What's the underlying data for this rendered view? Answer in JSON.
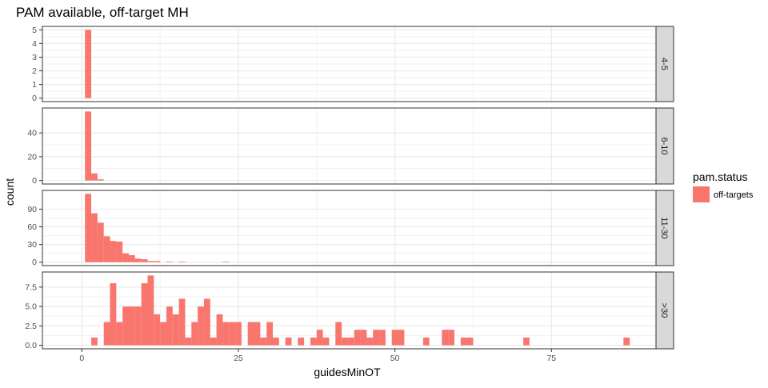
{
  "chart_data": {
    "type": "bar",
    "title": "PAM available, off-target MH",
    "xlabel": "guidesMinOT",
    "ylabel": "count",
    "xlim": [
      -6.3,
      91.7
    ],
    "x_ticks": [
      0,
      25,
      50,
      75
    ],
    "x_tick_labels": [
      "0",
      "25",
      "50",
      "75"
    ],
    "bin_width": 1,
    "grid": true,
    "legend": {
      "title": "pam.status",
      "position": "right",
      "entries": [
        {
          "label": "off-targets",
          "color": "#F8766D"
        }
      ]
    },
    "panels": [
      {
        "strip": "4-5",
        "ylim": [
          -0.25,
          5.25
        ],
        "y_ticks": [
          0,
          1,
          2,
          3,
          4,
          5
        ],
        "y_tick_labels": [
          "0",
          "1",
          "2",
          "3",
          "4",
          "5"
        ],
        "bins": [
          {
            "x": 1,
            "count": 5
          }
        ]
      },
      {
        "strip": "6-10",
        "ylim": [
          -2.9,
          60.9
        ],
        "y_ticks": [
          0,
          20,
          40
        ],
        "y_tick_labels": [
          "0",
          "20",
          "40"
        ],
        "bins": [
          {
            "x": 1,
            "count": 58
          },
          {
            "x": 2,
            "count": 6
          },
          {
            "x": 3,
            "count": 1
          }
        ]
      },
      {
        "strip": "11-30",
        "ylim": [
          -5.8,
          121.8
        ],
        "y_ticks": [
          0,
          30,
          60,
          90
        ],
        "y_tick_labels": [
          "0",
          "30",
          "60",
          "90"
        ],
        "bins": [
          {
            "x": 1,
            "count": 116
          },
          {
            "x": 2,
            "count": 83
          },
          {
            "x": 3,
            "count": 67
          },
          {
            "x": 4,
            "count": 44
          },
          {
            "x": 5,
            "count": 36
          },
          {
            "x": 6,
            "count": 35
          },
          {
            "x": 7,
            "count": 15
          },
          {
            "x": 8,
            "count": 12
          },
          {
            "x": 9,
            "count": 6
          },
          {
            "x": 10,
            "count": 5
          },
          {
            "x": 11,
            "count": 2
          },
          {
            "x": 12,
            "count": 2
          },
          {
            "x": 14,
            "count": 1
          },
          {
            "x": 16,
            "count": 1
          },
          {
            "x": 23,
            "count": 1
          }
        ]
      },
      {
        "strip": ">30",
        "ylim": [
          -0.45,
          9.45
        ],
        "y_ticks": [
          0,
          2.5,
          5,
          7.5
        ],
        "y_tick_labels": [
          "0.0",
          "2.5",
          "5.0",
          "7.5"
        ],
        "bins": [
          {
            "x": 2,
            "count": 1
          },
          {
            "x": 4,
            "count": 3
          },
          {
            "x": 5,
            "count": 8
          },
          {
            "x": 6,
            "count": 3
          },
          {
            "x": 7,
            "count": 5
          },
          {
            "x": 8,
            "count": 5
          },
          {
            "x": 9,
            "count": 5
          },
          {
            "x": 10,
            "count": 8
          },
          {
            "x": 11,
            "count": 9
          },
          {
            "x": 12,
            "count": 4
          },
          {
            "x": 13,
            "count": 3
          },
          {
            "x": 14,
            "count": 5
          },
          {
            "x": 15,
            "count": 4
          },
          {
            "x": 16,
            "count": 6
          },
          {
            "x": 17,
            "count": 1
          },
          {
            "x": 18,
            "count": 3
          },
          {
            "x": 19,
            "count": 5
          },
          {
            "x": 20,
            "count": 6
          },
          {
            "x": 21,
            "count": 1
          },
          {
            "x": 22,
            "count": 4
          },
          {
            "x": 23,
            "count": 3
          },
          {
            "x": 24,
            "count": 3
          },
          {
            "x": 25,
            "count": 3
          },
          {
            "x": 27,
            "count": 3
          },
          {
            "x": 28,
            "count": 3
          },
          {
            "x": 29,
            "count": 1
          },
          {
            "x": 30,
            "count": 3
          },
          {
            "x": 31,
            "count": 1
          },
          {
            "x": 33,
            "count": 1
          },
          {
            "x": 35,
            "count": 1
          },
          {
            "x": 37,
            "count": 1
          },
          {
            "x": 38,
            "count": 2
          },
          {
            "x": 39,
            "count": 1
          },
          {
            "x": 41,
            "count": 3
          },
          {
            "x": 42,
            "count": 1
          },
          {
            "x": 43,
            "count": 1
          },
          {
            "x": 44,
            "count": 2
          },
          {
            "x": 45,
            "count": 2
          },
          {
            "x": 46,
            "count": 1
          },
          {
            "x": 47,
            "count": 2
          },
          {
            "x": 48,
            "count": 2
          },
          {
            "x": 50,
            "count": 2
          },
          {
            "x": 51,
            "count": 2
          },
          {
            "x": 55,
            "count": 1
          },
          {
            "x": 58,
            "count": 2
          },
          {
            "x": 59,
            "count": 2
          },
          {
            "x": 61,
            "count": 1
          },
          {
            "x": 62,
            "count": 1
          },
          {
            "x": 71,
            "count": 1
          },
          {
            "x": 87,
            "count": 1
          }
        ]
      }
    ]
  }
}
